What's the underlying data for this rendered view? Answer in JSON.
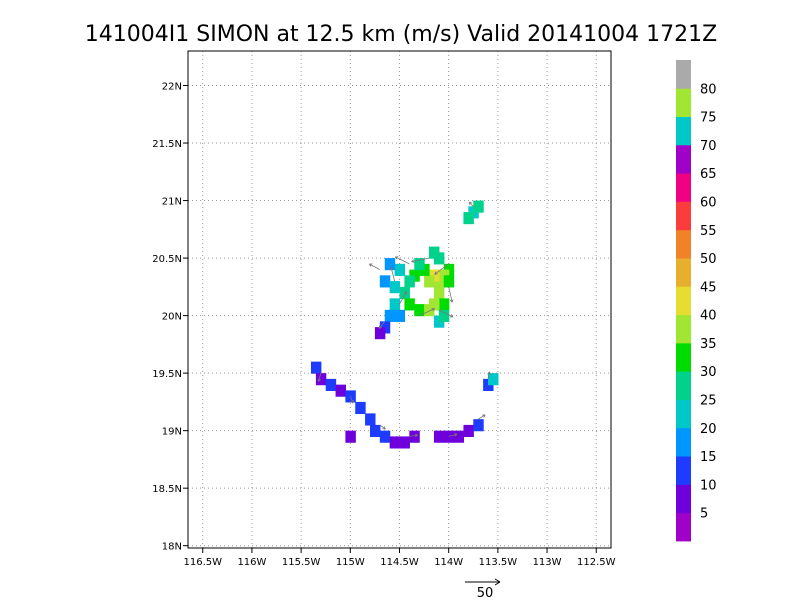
{
  "chart_data": {
    "type": "heatmap",
    "title": "141004I1 SIMON at 12.5 km (m/s) Valid 20141004 1721Z",
    "xlim": [
      -116.65,
      -112.35
    ],
    "ylim": [
      17.98,
      22.3
    ],
    "x_ticks": [
      -116.5,
      -116,
      -115.5,
      -115,
      -114.5,
      -114,
      -113.5,
      -113,
      -112.5
    ],
    "x_tick_labels": [
      "116.5W",
      "116W",
      "115.5W",
      "115W",
      "114.5W",
      "114W",
      "113.5W",
      "113W",
      "112.5W"
    ],
    "y_ticks": [
      18,
      18.5,
      19,
      19.5,
      20,
      20.5,
      21,
      21.5,
      22
    ],
    "y_tick_labels": [
      "18N",
      "18.5N",
      "19N",
      "19.5N",
      "20N",
      "20.5N",
      "21N",
      "21.5N",
      "22N"
    ],
    "grid": true,
    "colorbar": {
      "levels": [
        0,
        5,
        10,
        15,
        20,
        25,
        30,
        35,
        40,
        45,
        50,
        55,
        60,
        65,
        70,
        75,
        80,
        85
      ],
      "labels": [
        "5",
        "10",
        "15",
        "20",
        "25",
        "30",
        "35",
        "40",
        "45",
        "50",
        "55",
        "60",
        "65",
        "70",
        "75",
        "80"
      ],
      "colors": [
        "#a000c8",
        "#6e00dc",
        "#1e3cff",
        "#0096ff",
        "#00c8c8",
        "#00d28c",
        "#00dc00",
        "#a0e632",
        "#e6dc32",
        "#e6af2d",
        "#f08228",
        "#fa3c3c",
        "#f00082",
        "#a000c8",
        "#00c8c8",
        "#a0e632",
        "#aaaaaa"
      ]
    },
    "reference_vector": {
      "label": "50",
      "magnitude": 50
    },
    "cells": [
      {
        "lon": -114.0,
        "lat": 20.4,
        "v": 33
      },
      {
        "lon": -114.05,
        "lat": 20.35,
        "v": 36
      },
      {
        "lon": -114.1,
        "lat": 20.3,
        "v": 38
      },
      {
        "lon": -114.1,
        "lat": 20.2,
        "v": 37
      },
      {
        "lon": -114.05,
        "lat": 20.1,
        "v": 33
      },
      {
        "lon": -114.0,
        "lat": 20.3,
        "v": 32
      },
      {
        "lon": -114.15,
        "lat": 20.35,
        "v": 40
      },
      {
        "lon": -114.2,
        "lat": 20.3,
        "v": 37
      },
      {
        "lon": -114.25,
        "lat": 20.4,
        "v": 33
      },
      {
        "lon": -114.35,
        "lat": 20.35,
        "v": 30
      },
      {
        "lon": -114.4,
        "lat": 20.3,
        "v": 28
      },
      {
        "lon": -114.45,
        "lat": 20.2,
        "v": 26
      },
      {
        "lon": -114.4,
        "lat": 20.1,
        "v": 30
      },
      {
        "lon": -114.3,
        "lat": 20.05,
        "v": 34
      },
      {
        "lon": -114.2,
        "lat": 20.05,
        "v": 36
      },
      {
        "lon": -114.15,
        "lat": 20.1,
        "v": 38
      },
      {
        "lon": -114.15,
        "lat": 20.55,
        "v": 28
      },
      {
        "lon": -114.1,
        "lat": 20.5,
        "v": 26
      },
      {
        "lon": -114.3,
        "lat": 20.45,
        "v": 27
      },
      {
        "lon": -114.5,
        "lat": 20.4,
        "v": 22
      },
      {
        "lon": -114.6,
        "lat": 20.45,
        "v": 19
      },
      {
        "lon": -114.65,
        "lat": 20.3,
        "v": 16
      },
      {
        "lon": -114.55,
        "lat": 20.25,
        "v": 22
      },
      {
        "lon": -114.55,
        "lat": 20.1,
        "v": 20
      },
      {
        "lon": -114.6,
        "lat": 20.0,
        "v": 15
      },
      {
        "lon": -114.65,
        "lat": 19.9,
        "v": 12
      },
      {
        "lon": -114.7,
        "lat": 19.85,
        "v": 8
      },
      {
        "lon": -114.5,
        "lat": 20.0,
        "v": 17
      },
      {
        "lon": -114.1,
        "lat": 19.95,
        "v": 22
      },
      {
        "lon": -114.05,
        "lat": 20.0,
        "v": 27
      },
      {
        "lon": -113.75,
        "lat": 20.9,
        "v": 24
      },
      {
        "lon": -113.8,
        "lat": 20.85,
        "v": 25
      },
      {
        "lon": -113.7,
        "lat": 20.95,
        "v": 27
      },
      {
        "lon": -115.35,
        "lat": 19.55,
        "v": 13
      },
      {
        "lon": -115.3,
        "lat": 19.45,
        "v": 7
      },
      {
        "lon": -115.2,
        "lat": 19.4,
        "v": 12
      },
      {
        "lon": -115.1,
        "lat": 19.35,
        "v": 8
      },
      {
        "lon": -115.0,
        "lat": 19.3,
        "v": 14
      },
      {
        "lon": -114.9,
        "lat": 19.2,
        "v": 12
      },
      {
        "lon": -114.8,
        "lat": 19.1,
        "v": 14
      },
      {
        "lon": -114.75,
        "lat": 19.0,
        "v": 13
      },
      {
        "lon": -114.65,
        "lat": 18.95,
        "v": 14
      },
      {
        "lon": -114.55,
        "lat": 18.9,
        "v": 9
      },
      {
        "lon": -114.45,
        "lat": 18.9,
        "v": 8
      },
      {
        "lon": -114.35,
        "lat": 18.95,
        "v": 9
      },
      {
        "lon": -114.1,
        "lat": 18.95,
        "v": 9
      },
      {
        "lon": -114.0,
        "lat": 18.95,
        "v": 8
      },
      {
        "lon": -113.9,
        "lat": 18.95,
        "v": 7
      },
      {
        "lon": -113.8,
        "lat": 19.0,
        "v": 9
      },
      {
        "lon": -113.7,
        "lat": 19.05,
        "v": 12
      },
      {
        "lon": -113.6,
        "lat": 19.4,
        "v": 14
      },
      {
        "lon": -113.55,
        "lat": 19.45,
        "v": 22
      },
      {
        "lon": -115.0,
        "lat": 18.95,
        "v": 8
      }
    ],
    "vectors": [
      {
        "lon": -114.0,
        "lat": 20.45,
        "u": -20,
        "v": -15
      },
      {
        "lon": -114.2,
        "lat": 20.5,
        "u": -25,
        "v": -5
      },
      {
        "lon": -114.4,
        "lat": 20.45,
        "u": -20,
        "v": 10
      },
      {
        "lon": -114.55,
        "lat": 20.3,
        "u": -5,
        "v": 20
      },
      {
        "lon": -114.5,
        "lat": 20.1,
        "u": 10,
        "v": 18
      },
      {
        "lon": -114.3,
        "lat": 20.0,
        "u": 22,
        "v": 10
      },
      {
        "lon": -114.1,
        "lat": 20.05,
        "u": 20,
        "v": -10
      },
      {
        "lon": -114.0,
        "lat": 20.25,
        "u": 5,
        "v": -22
      },
      {
        "lon": -114.65,
        "lat": 19.95,
        "u": -8,
        "v": -10
      },
      {
        "lon": -114.7,
        "lat": 20.4,
        "u": -15,
        "v": 8
      },
      {
        "lon": -115.3,
        "lat": 19.5,
        "u": -3,
        "v": -12
      },
      {
        "lon": -115.0,
        "lat": 19.3,
        "u": 4,
        "v": -10
      },
      {
        "lon": -114.7,
        "lat": 19.05,
        "u": 8,
        "v": -6
      },
      {
        "lon": -114.4,
        "lat": 18.95,
        "u": 12,
        "v": 2
      },
      {
        "lon": -114.0,
        "lat": 18.95,
        "u": 12,
        "v": 3
      },
      {
        "lon": -113.7,
        "lat": 19.1,
        "u": 10,
        "v": 6
      },
      {
        "lon": -113.75,
        "lat": 20.95,
        "u": -6,
        "v": 6
      },
      {
        "lon": -113.6,
        "lat": 19.45,
        "u": 2,
        "v": 10
      }
    ]
  }
}
